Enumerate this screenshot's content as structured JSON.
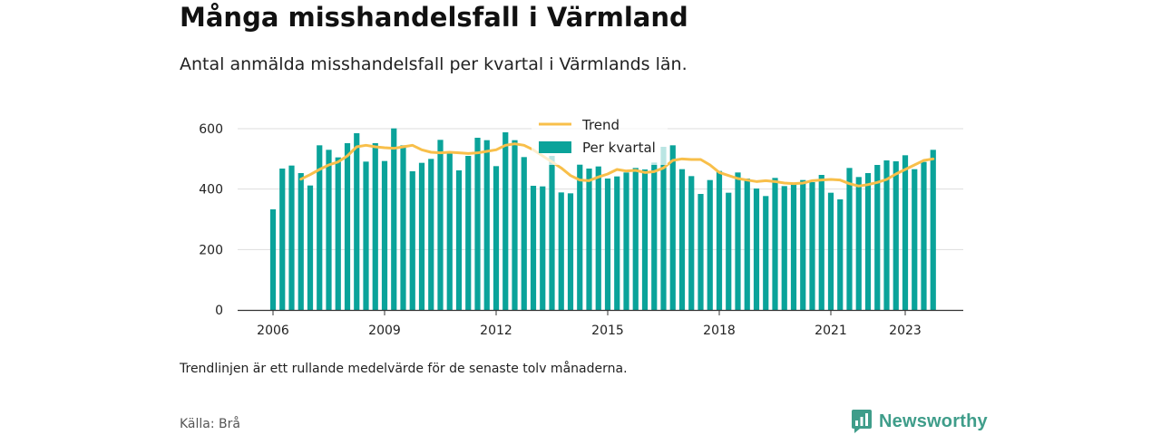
{
  "header": {
    "title": "Många misshandelsfall i Värmland",
    "subtitle": "Antal anmälda misshandelsfall per kvartal i Värmlands län."
  },
  "footer": {
    "note": "Trendlinjen är ett rullande medelvärde för de senaste tolv månaderna.",
    "source": "Källa: Brå",
    "brand": "Newsworthy"
  },
  "colors": {
    "bar": "#0aa39a",
    "trend": "#f8bf4a",
    "grid": "#dddddd",
    "axis": "#333333",
    "brand": "#3f9d8a"
  },
  "chart_data": {
    "type": "bar",
    "x_start": 2006,
    "quarters_per_year": 4,
    "xticks": [
      2006,
      2009,
      2012,
      2015,
      2018,
      2021,
      2023
    ],
    "yticks": [
      0,
      200,
      400,
      600
    ],
    "ylim": [
      0,
      640
    ],
    "grid": true,
    "legend_placement": "top-center",
    "series": [
      {
        "name": "Per kvartal",
        "type": "bar",
        "values": [
          333,
          468,
          478,
          453,
          412,
          545,
          530,
          505,
          552,
          585,
          491,
          552,
          493,
          601,
          545,
          459,
          487,
          500,
          563,
          523,
          462,
          510,
          570,
          562,
          476,
          588,
          562,
          506,
          411,
          409,
          510,
          389,
          386,
          483,
          468,
          475,
          435,
          442,
          455,
          470,
          465,
          488,
          540,
          545,
          466,
          443,
          384,
          430,
          460,
          388,
          455,
          435,
          402,
          377,
          437,
          410,
          418,
          430,
          423,
          447,
          388,
          366,
          470,
          440,
          453,
          480,
          495,
          492,
          512,
          466,
          490,
          530
        ]
      },
      {
        "name": "Trend",
        "type": "line",
        "values": [
          null,
          null,
          null,
          433,
          448,
          465,
          480,
          490,
          510,
          540,
          545,
          540,
          537,
          535,
          540,
          545,
          530,
          522,
          520,
          522,
          520,
          518,
          520,
          525,
          530,
          545,
          550,
          545,
          530,
          510,
          490,
          470,
          445,
          430,
          428,
          440,
          450,
          465,
          460,
          462,
          455,
          458,
          470,
          495,
          500,
          498,
          498,
          480,
          455,
          445,
          435,
          430,
          425,
          428,
          425,
          420,
          418,
          420,
          428,
          430,
          432,
          430,
          418,
          410,
          415,
          422,
          432,
          450,
          465,
          480,
          495,
          500
        ]
      }
    ]
  }
}
